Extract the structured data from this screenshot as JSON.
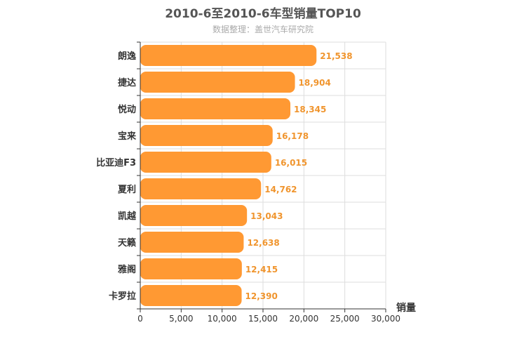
{
  "chart_data": {
    "type": "bar",
    "orientation": "horizontal",
    "title": "2010-6至2010-6车型销量TOP10",
    "subtitle": "数据整理：盖世汽车研究院",
    "categories": [
      "朗逸",
      "捷达",
      "悦动",
      "宝来",
      "比亚迪F3",
      "夏利",
      "凯越",
      "天籁",
      "雅阁",
      "卡罗拉"
    ],
    "values": [
      21538,
      18904,
      18345,
      16178,
      16015,
      14762,
      13043,
      12638,
      12415,
      12390
    ],
    "value_labels": [
      "21,538",
      "18,904",
      "18,345",
      "16,178",
      "16,015",
      "14,762",
      "13,043",
      "12,638",
      "12,415",
      "12,390"
    ],
    "xlabel": "销量",
    "xlim": [
      0,
      30000
    ],
    "xticks": [
      0,
      5000,
      10000,
      15000,
      20000,
      25000,
      30000
    ],
    "xtick_labels": [
      "0",
      "5,000",
      "10,000",
      "15,000",
      "20,000",
      "25,000",
      "30,000"
    ],
    "grid": true,
    "bar_color": "#ff9933",
    "label_color": "#f0952e"
  }
}
